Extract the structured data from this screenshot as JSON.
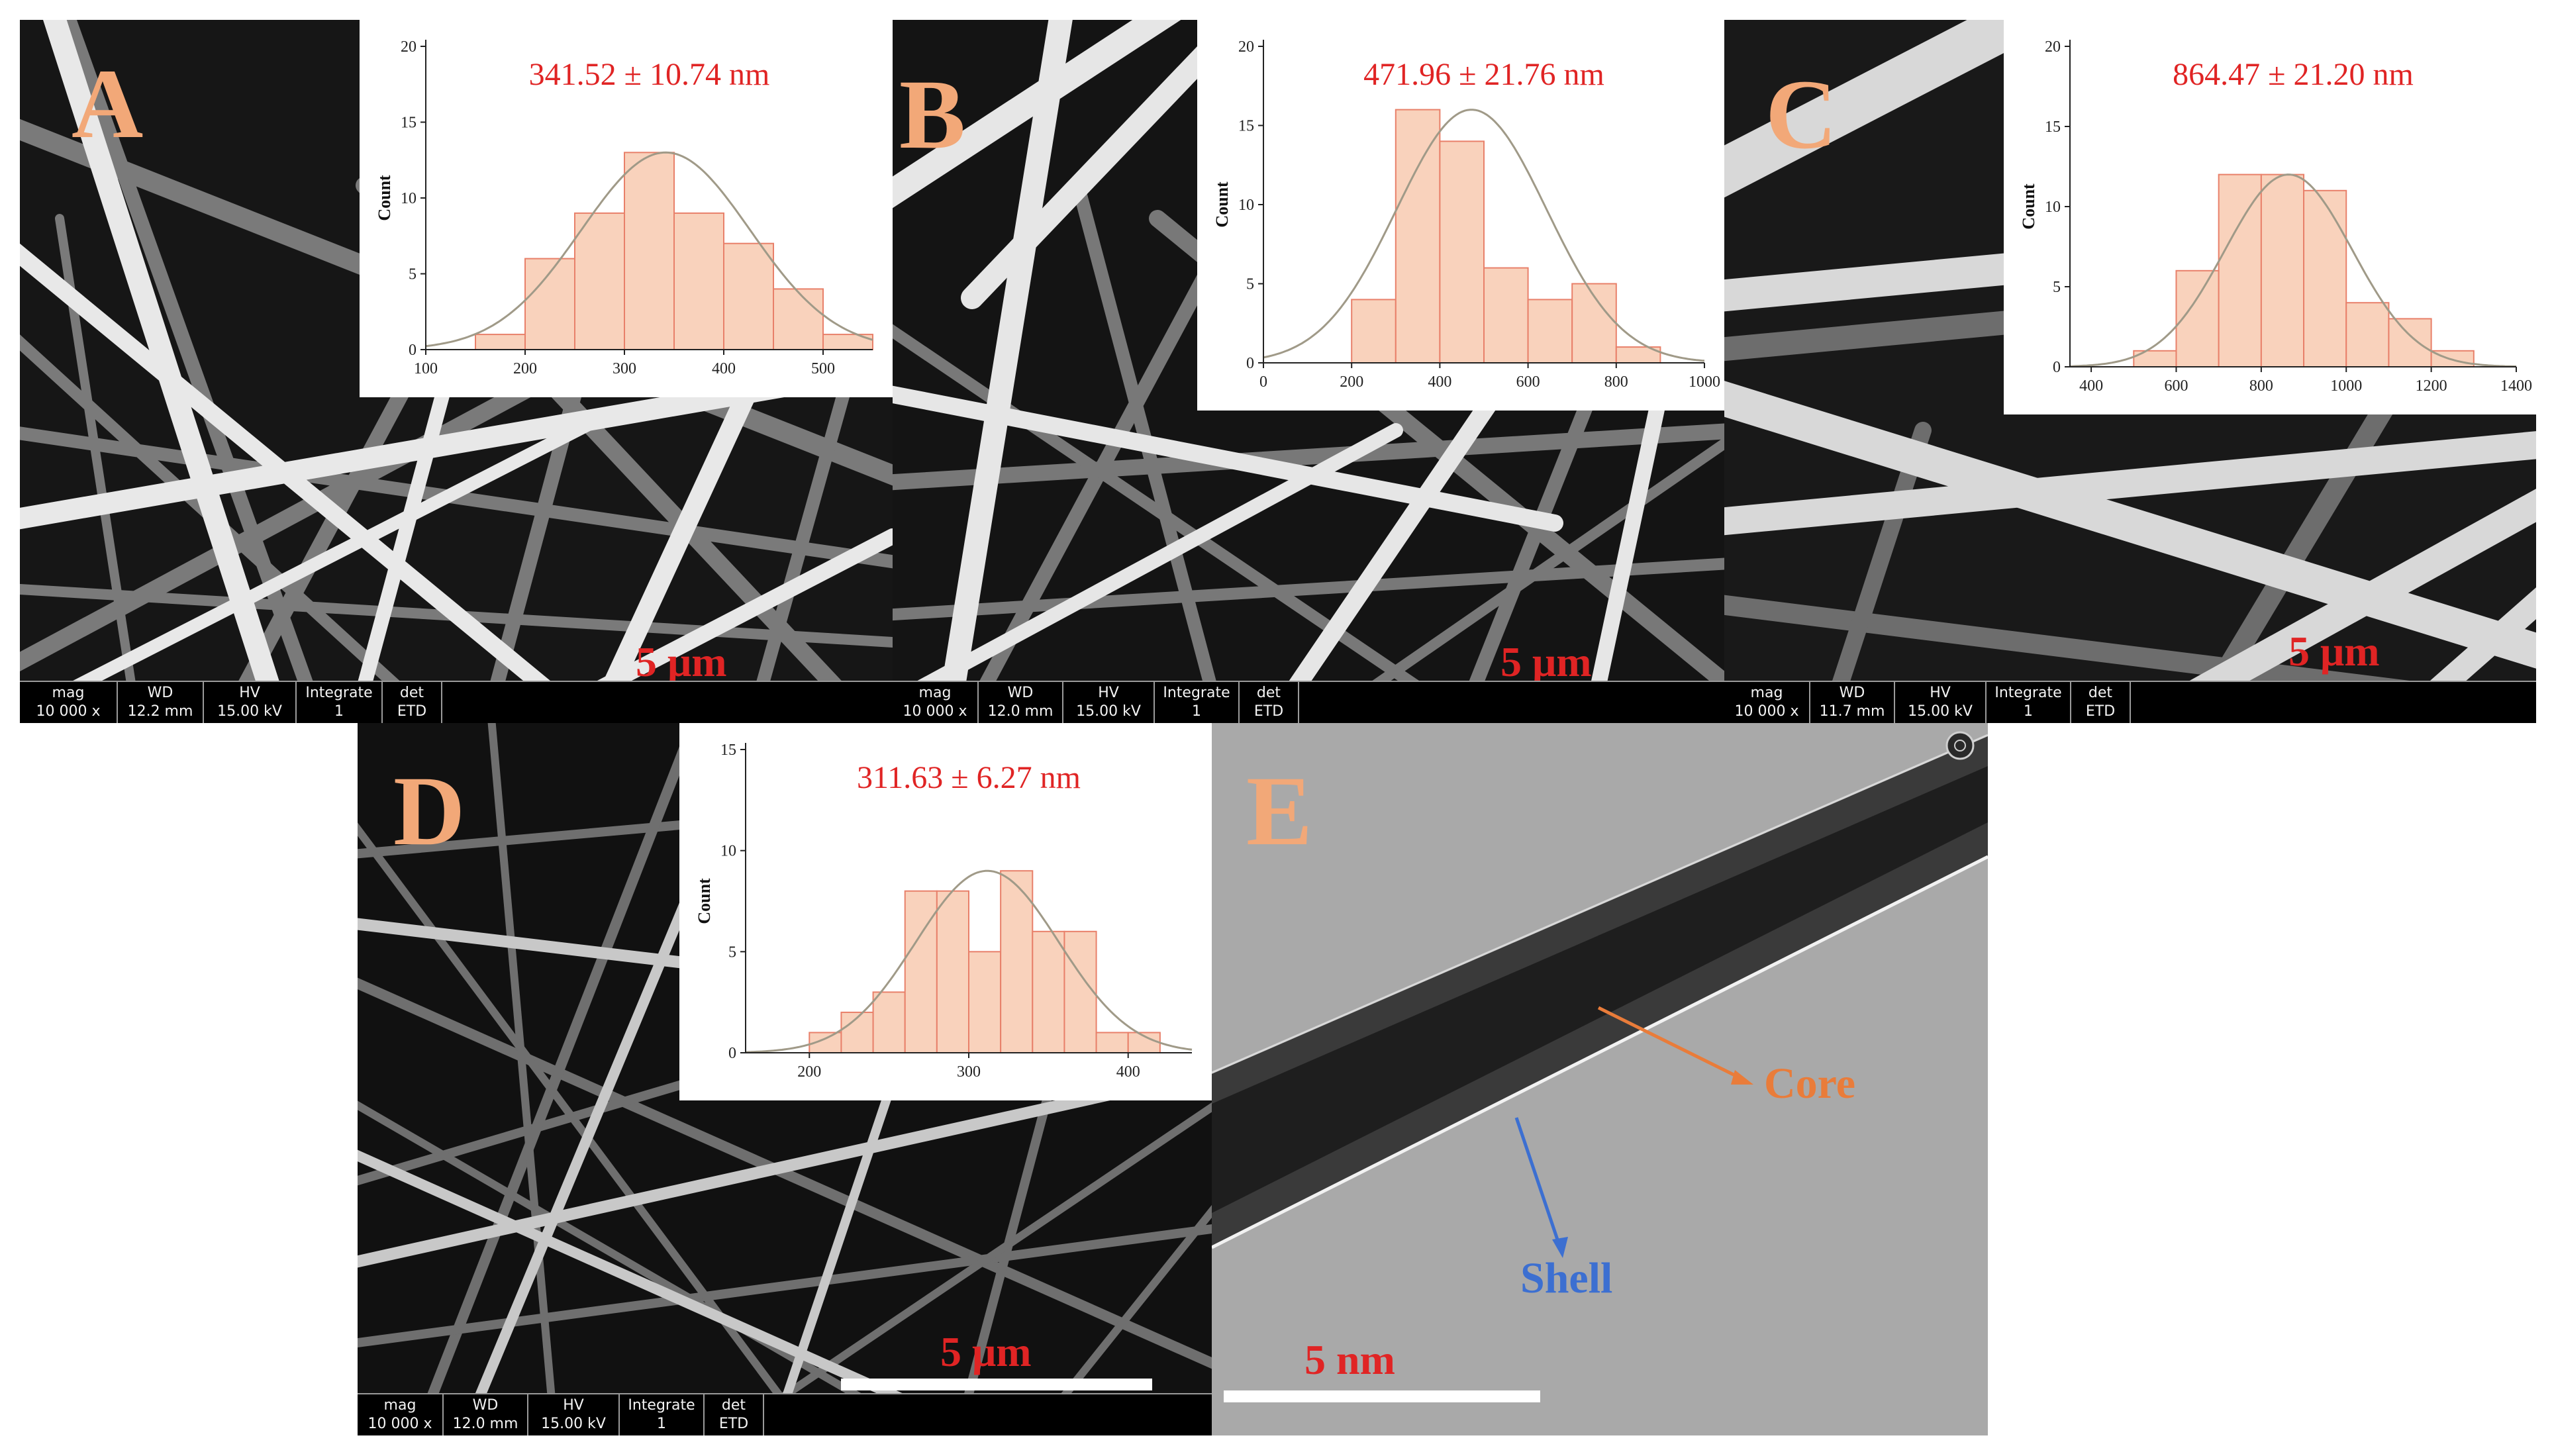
{
  "panels": {
    "A": {
      "letter": "A",
      "scale_label": "5 μm",
      "infobar": [
        {
          "k": "mag",
          "v": "10 000 x"
        },
        {
          "k": "WD",
          "v": "12.2 mm"
        },
        {
          "k": "HV",
          "v": "15.00 kV"
        },
        {
          "k": "Integrate",
          "v": "1"
        },
        {
          "k": "det",
          "v": "ETD"
        }
      ],
      "chart_data": {
        "type": "bar",
        "title": "341.52 ± 10.74 nm",
        "ylabel": "Count",
        "xlim": [
          100,
          550
        ],
        "ylim": [
          0,
          20
        ],
        "xticks": [
          100,
          200,
          300,
          400,
          500
        ],
        "yticks": [
          0,
          5,
          10,
          15,
          20
        ],
        "bin_width": 50,
        "bins": [
          [
            150,
            1
          ],
          [
            200,
            6
          ],
          [
            250,
            9
          ],
          [
            300,
            13
          ],
          [
            350,
            9
          ],
          [
            400,
            7
          ],
          [
            450,
            4
          ],
          [
            500,
            1
          ]
        ],
        "fit": {
          "mean": 341.52,
          "sd": 85,
          "peak": 13
        }
      }
    },
    "B": {
      "letter": "B",
      "scale_label": "5 μm",
      "infobar": [
        {
          "k": "mag",
          "v": "10 000 x"
        },
        {
          "k": "WD",
          "v": "12.0 mm"
        },
        {
          "k": "HV",
          "v": "15.00 kV"
        },
        {
          "k": "Integrate",
          "v": "1"
        },
        {
          "k": "det",
          "v": "ETD"
        }
      ],
      "chart_data": {
        "type": "bar",
        "title": "471.96 ± 21.76 nm",
        "ylabel": "Count",
        "xlim": [
          0,
          1000
        ],
        "ylim": [
          0,
          20
        ],
        "xticks": [
          0,
          200,
          400,
          600,
          800,
          1000
        ],
        "yticks": [
          0,
          5,
          10,
          15,
          20
        ],
        "bin_width": 100,
        "bins": [
          [
            200,
            4
          ],
          [
            300,
            16
          ],
          [
            400,
            14
          ],
          [
            500,
            6
          ],
          [
            600,
            4
          ],
          [
            700,
            5
          ],
          [
            800,
            1
          ]
        ],
        "fit": {
          "mean": 471.96,
          "sd": 170,
          "peak": 16
        }
      }
    },
    "C": {
      "letter": "C",
      "scale_label": "5 μm",
      "infobar": [
        {
          "k": "mag",
          "v": "10 000 x"
        },
        {
          "k": "WD",
          "v": "11.7 mm"
        },
        {
          "k": "HV",
          "v": "15.00 kV"
        },
        {
          "k": "Integrate",
          "v": "1"
        },
        {
          "k": "det",
          "v": "ETD"
        }
      ],
      "chart_data": {
        "type": "bar",
        "title": "864.47 ± 21.20 nm",
        "ylabel": "Count",
        "xlim": [
          350,
          1400
        ],
        "ylim": [
          0,
          20
        ],
        "xticks": [
          400,
          600,
          800,
          1000,
          1200,
          1400
        ],
        "yticks": [
          0,
          5,
          10,
          15,
          20
        ],
        "bin_width": 100,
        "bins": [
          [
            500,
            1
          ],
          [
            600,
            6
          ],
          [
            700,
            12
          ],
          [
            800,
            12
          ],
          [
            900,
            11
          ],
          [
            1000,
            4
          ],
          [
            1100,
            3
          ],
          [
            1200,
            1
          ]
        ],
        "fit": {
          "mean": 864.47,
          "sd": 150,
          "peak": 12
        }
      }
    },
    "D": {
      "letter": "D",
      "scale_label": "5 μm",
      "infobar": [
        {
          "k": "mag",
          "v": "10 000 x"
        },
        {
          "k": "WD",
          "v": "12.0 mm"
        },
        {
          "k": "HV",
          "v": "15.00 kV"
        },
        {
          "k": "Integrate",
          "v": "1"
        },
        {
          "k": "det",
          "v": "ETD"
        }
      ],
      "chart_data": {
        "type": "bar",
        "title": "311.63 ± 6.27 nm",
        "ylabel": "Count",
        "xlim": [
          160,
          440
        ],
        "ylim": [
          0,
          15
        ],
        "xticks": [
          200,
          300,
          400
        ],
        "yticks": [
          0,
          5,
          10,
          15
        ],
        "bin_width": 20,
        "bins": [
          [
            200,
            1
          ],
          [
            220,
            2
          ],
          [
            240,
            3
          ],
          [
            260,
            8
          ],
          [
            280,
            8
          ],
          [
            300,
            5
          ],
          [
            320,
            9
          ],
          [
            340,
            6
          ],
          [
            360,
            6
          ],
          [
            380,
            1
          ],
          [
            400,
            1
          ]
        ],
        "fit": {
          "mean": 311.63,
          "sd": 45,
          "peak": 9
        }
      }
    },
    "E": {
      "letter": "E",
      "scale_label": "5 nm",
      "core_label": "Core",
      "shell_label": "Shell"
    }
  },
  "colors": {
    "bar_fill": "#f9d2bc",
    "bar_edge": "#e8806a",
    "fit_line": "#a09a88",
    "letter": "#f2a878",
    "title_red": "#e02424",
    "core_arrow": "#e97c3a",
    "shell_arrow": "#3c6fd1"
  }
}
